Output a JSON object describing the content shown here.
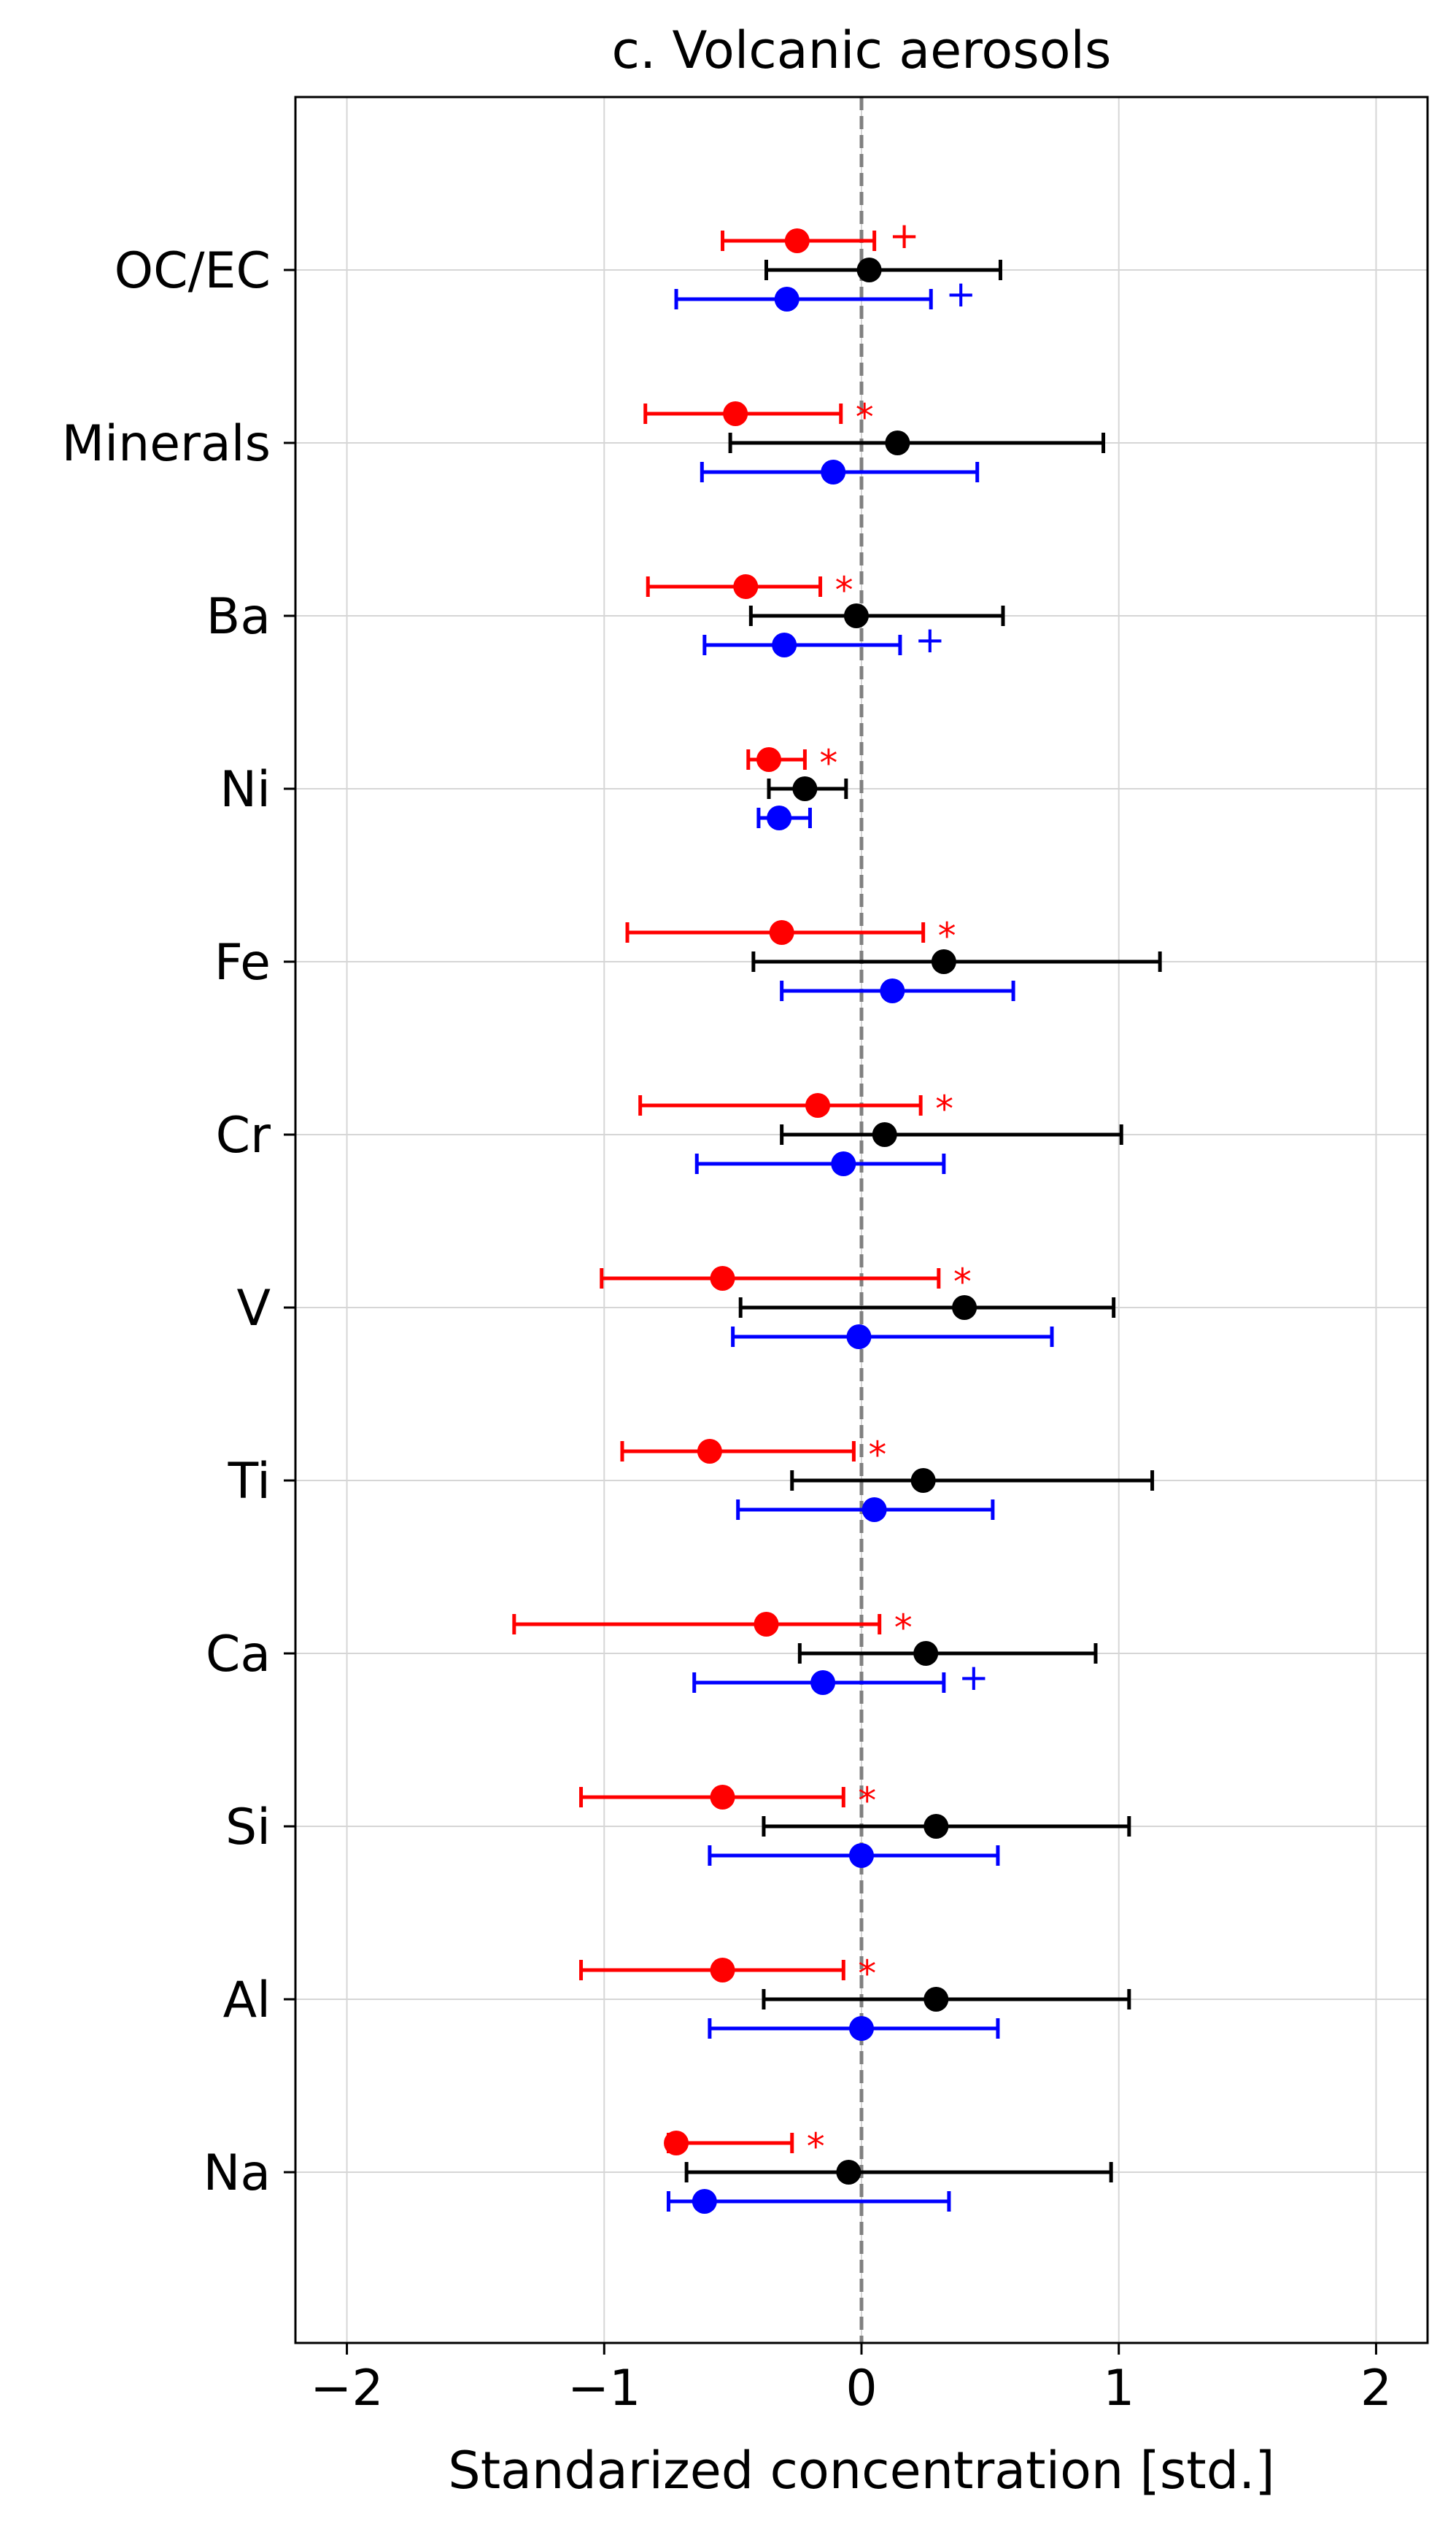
{
  "chart_data": {
    "type": "errorbar",
    "title": "c. Volcanic aerosols",
    "xlabel": "Standarized concentration [std.]",
    "ylabel": "",
    "xlim": [
      -2.2,
      2.2
    ],
    "xticks": [
      -2,
      -1,
      0,
      1,
      2
    ],
    "xtick_labels": [
      "−2",
      "−1",
      "0",
      "1",
      "2"
    ],
    "grid": true,
    "reference_line": {
      "x": 0,
      "style": "dashed",
      "color": "#808080"
    },
    "categories": [
      "OC/EC",
      "Minerals",
      "Ba",
      "Ni",
      "Fe",
      "Cr",
      "V",
      "Ti",
      "Ca",
      "Si",
      "Al",
      "Na"
    ],
    "series": [
      {
        "color": "#ff0000",
        "values": [
          -0.25,
          -0.49,
          -0.45,
          -0.36,
          -0.31,
          -0.17,
          -0.54,
          -0.59,
          -0.37,
          -0.54,
          -0.54,
          -0.72
        ],
        "lower": [
          -0.54,
          -0.84,
          -0.83,
          -0.44,
          -0.91,
          -0.86,
          -1.01,
          -0.93,
          -1.35,
          -1.09,
          -1.09,
          -0.75
        ],
        "upper": [
          0.05,
          -0.08,
          -0.16,
          -0.22,
          0.24,
          0.23,
          0.3,
          -0.03,
          0.07,
          -0.07,
          -0.07,
          -0.27
        ],
        "markers": [
          "+",
          "*",
          "*",
          "*",
          "*",
          "*",
          "*",
          "*",
          "*",
          "*",
          "*",
          "*"
        ]
      },
      {
        "color": "#000000",
        "values": [
          0.03,
          0.14,
          -0.02,
          -0.22,
          0.32,
          0.09,
          0.4,
          0.24,
          0.25,
          0.29,
          0.29,
          -0.05
        ],
        "lower": [
          -0.37,
          -0.51,
          -0.43,
          -0.36,
          -0.42,
          -0.31,
          -0.47,
          -0.27,
          -0.24,
          -0.38,
          -0.38,
          -0.68
        ],
        "upper": [
          0.54,
          0.94,
          0.55,
          -0.06,
          1.16,
          1.01,
          0.98,
          1.13,
          0.91,
          1.04,
          1.04,
          0.97
        ],
        "markers": [
          "",
          "",
          "",
          "",
          "",
          "",
          "",
          "",
          "",
          "",
          "",
          ""
        ]
      },
      {
        "color": "#0000ff",
        "values": [
          -0.29,
          -0.11,
          -0.3,
          -0.32,
          0.12,
          -0.07,
          -0.01,
          0.05,
          -0.15,
          0.0,
          0.0,
          -0.61
        ],
        "lower": [
          -0.72,
          -0.62,
          -0.61,
          -0.4,
          -0.31,
          -0.64,
          -0.5,
          -0.48,
          -0.65,
          -0.59,
          -0.59,
          -0.75
        ],
        "upper": [
          0.27,
          0.45,
          0.15,
          -0.2,
          0.59,
          0.32,
          0.74,
          0.51,
          0.32,
          0.53,
          0.53,
          0.34
        ],
        "markers": [
          "+",
          "",
          "+",
          "",
          "",
          "",
          "",
          "",
          "+",
          "",
          "",
          ""
        ]
      }
    ]
  }
}
